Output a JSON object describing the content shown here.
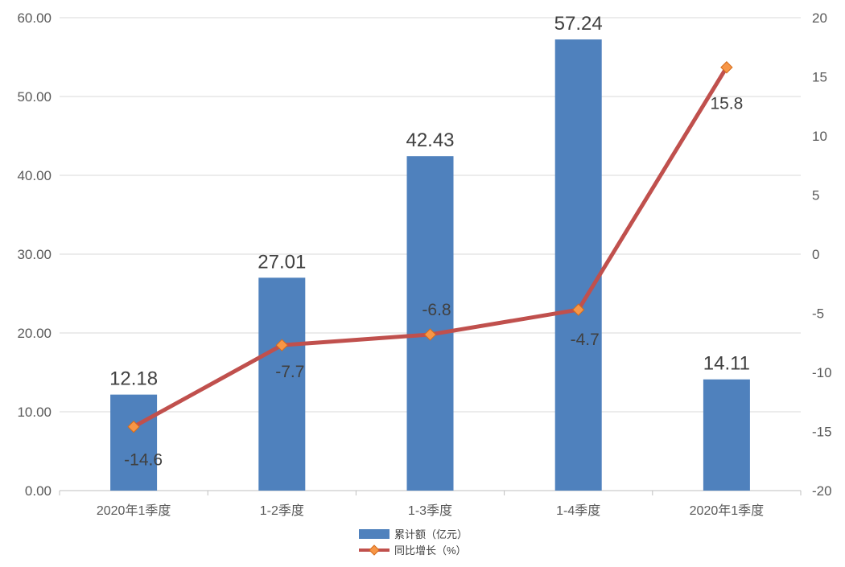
{
  "chart_data": {
    "type": "bar",
    "categories": [
      "2020年1季度",
      "1-2季度",
      "1-3季度",
      "1-4季度",
      "2020年1季度"
    ],
    "series": [
      {
        "name": "累计额（亿元）",
        "type": "bar",
        "axis": "left",
        "color": "#4f81bd",
        "values": [
          12.18,
          27.01,
          42.43,
          57.24,
          14.11
        ],
        "labels": [
          "12.18",
          "27.01",
          "42.43",
          "57.24",
          "14.11"
        ]
      },
      {
        "name": "同比增长（%）",
        "type": "line",
        "axis": "right",
        "color": "#c0504d",
        "marker_color": "#f79646",
        "values": [
          -14.6,
          -7.7,
          -6.8,
          -4.7,
          15.8
        ],
        "labels": [
          "-14.6",
          "-7.7",
          "-6.8",
          "-4.7",
          "15.8"
        ]
      }
    ],
    "y_left": {
      "ylim": [
        0,
        60
      ],
      "ticks": [
        0,
        10,
        20,
        30,
        40,
        50,
        60
      ],
      "tick_labels": [
        "0.00",
        "10.00",
        "20.00",
        "30.00",
        "40.00",
        "50.00",
        "60.00"
      ]
    },
    "y_right": {
      "ylim": [
        -20,
        20
      ],
      "ticks": [
        -20,
        -15,
        -10,
        -5,
        0,
        5,
        10,
        15,
        20
      ],
      "tick_labels": [
        "-20",
        "-15",
        "-10",
        "-5",
        "0",
        "5",
        "10",
        "15",
        "20"
      ]
    },
    "grid": true,
    "legend": "bottom-center"
  }
}
